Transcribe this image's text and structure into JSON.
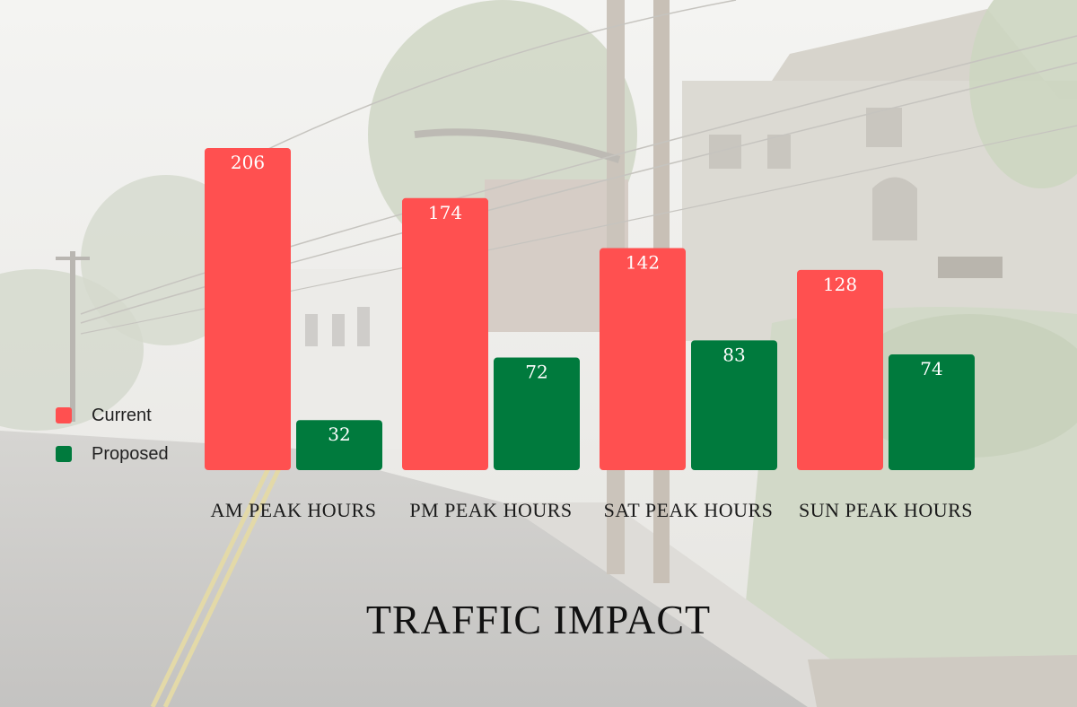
{
  "chart_data": {
    "type": "bar",
    "title": "TRAFFIC IMPACT",
    "categories": [
      "AM PEAK HOURS",
      "PM PEAK HOURS",
      "SAT PEAK HOURS",
      "SUN PEAK HOURS"
    ],
    "series": [
      {
        "name": "Current",
        "values": [
          206,
          174,
          142,
          128
        ],
        "color": "#ff5050"
      },
      {
        "name": "Proposed",
        "values": [
          32,
          72,
          83,
          74
        ],
        "color": "#007a3d"
      }
    ],
    "ylim": [
      0,
      206
    ],
    "grid": false,
    "legend_position": "left"
  }
}
